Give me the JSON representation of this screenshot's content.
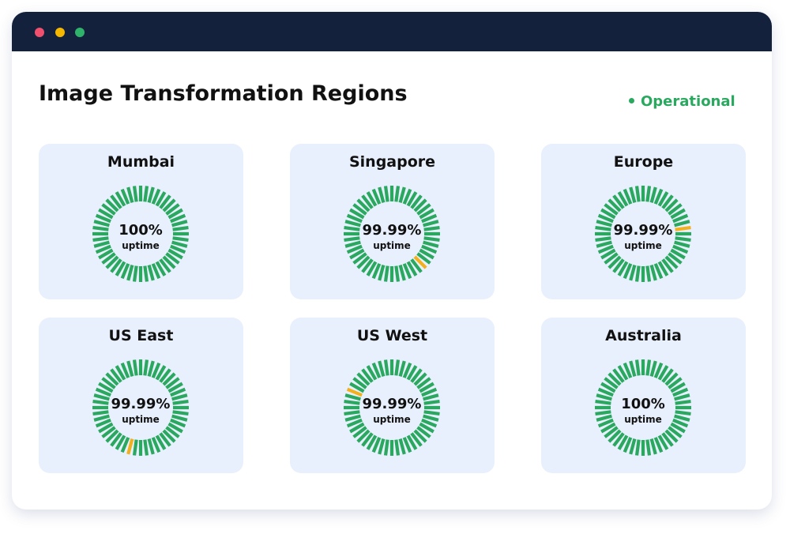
{
  "header": {
    "title": "Image Transformation Regions",
    "status": "Operational"
  },
  "regions": [
    {
      "name": "Mumbai",
      "uptime": "100%",
      "label": "uptime"
    },
    {
      "name": "Singapore",
      "uptime": "99.99%",
      "label": "uptime",
      "incident_segment": 18
    },
    {
      "name": "Europe",
      "uptime": "99.99%",
      "label": "uptime",
      "incident_segment": 11
    },
    {
      "name": "US East",
      "uptime": "99.99%",
      "label": "uptime",
      "incident_segment": 26
    },
    {
      "name": "US West",
      "uptime": "99.99%",
      "label": "uptime",
      "incident_segment": 39
    },
    {
      "name": "Australia",
      "uptime": "100%",
      "label": "uptime"
    }
  ]
}
